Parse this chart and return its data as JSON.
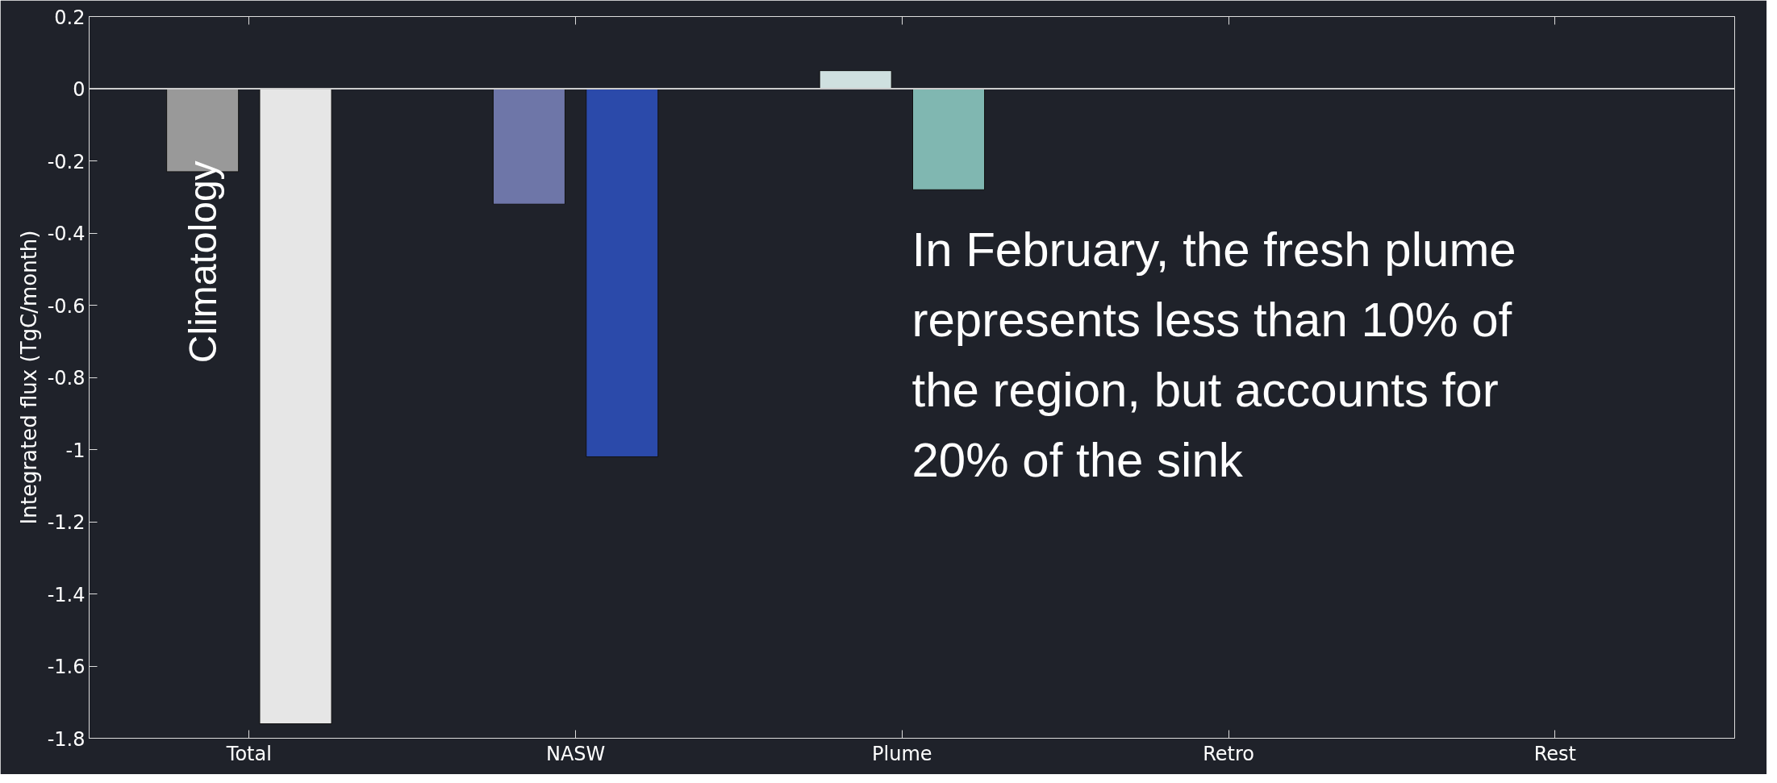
{
  "chart_data": {
    "type": "bar",
    "ylabel": "Integrated flux (TgC/month)",
    "categories": [
      "Total",
      "NASW",
      "Plume",
      "Retro",
      "Rest"
    ],
    "series": [
      {
        "colors": [
          "#999999",
          "#6e76a8",
          "#cfe0df",
          null,
          null
        ],
        "values": [
          -0.23,
          -0.32,
          0.05,
          null,
          null
        ]
      },
      {
        "colors": [
          "#e6e6e6",
          "#2b4aaa",
          "#80b7b1",
          null,
          null
        ],
        "values": [
          -1.76,
          -1.02,
          -0.28,
          null,
          null
        ]
      }
    ],
    "ylim": [
      -1.8,
      0.2
    ],
    "yticks": [
      0.2,
      0,
      -0.2,
      -0.4,
      -0.6,
      -0.8,
      -1,
      -1.2,
      -1.4,
      -1.6,
      -1.8
    ],
    "ref_lines": [
      {
        "axis": "y",
        "value": 0,
        "color": "#cccccc"
      }
    ],
    "grid": false,
    "annotations": [
      "Climatology",
      "In February, the fresh plume represents less than 10% of the region, but accounts for 20% of the sink"
    ]
  }
}
